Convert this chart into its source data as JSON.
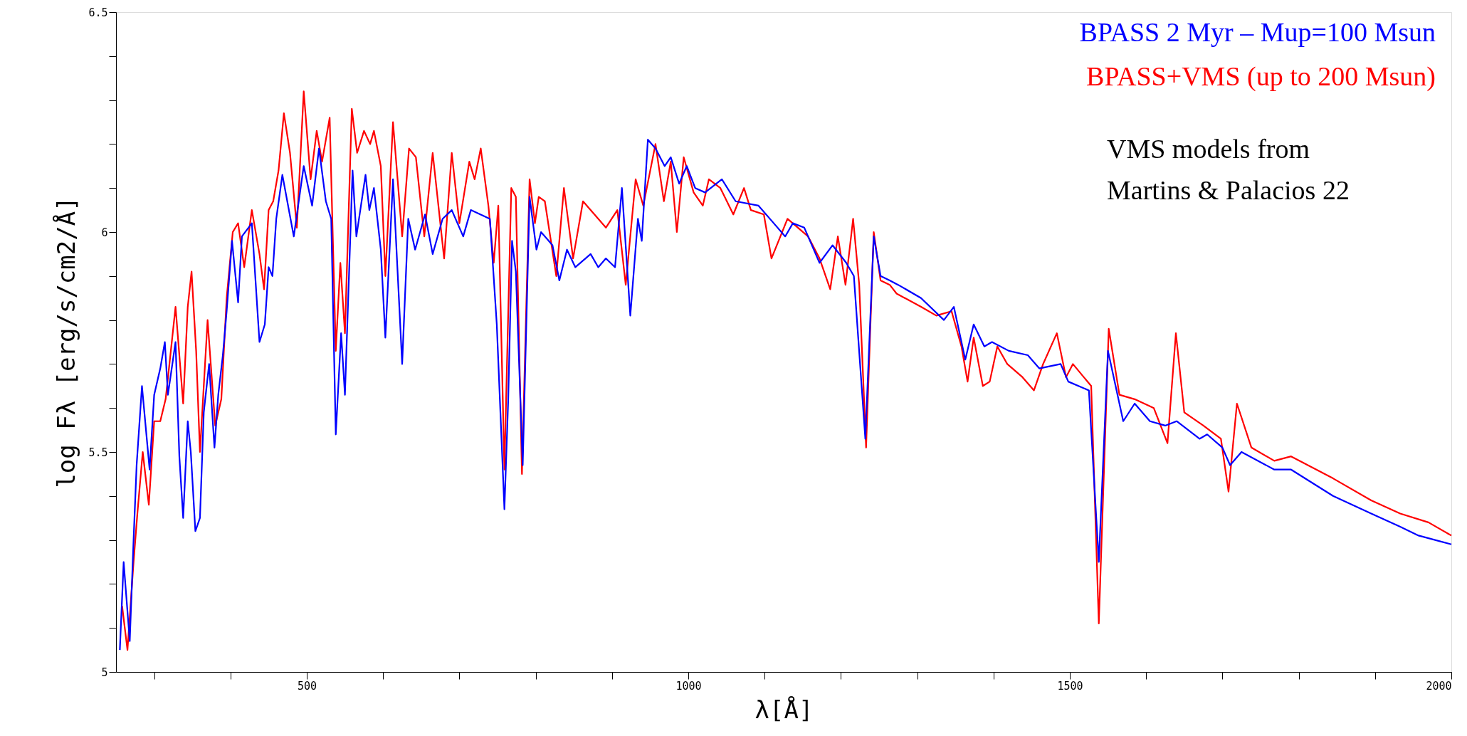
{
  "chart_data": {
    "type": "line",
    "xlabel": "λ[Å]",
    "ylabel": "log Fλ [erg/s/cm2/Å]",
    "xlim": [
      250,
      2000
    ],
    "ylim": [
      5,
      6.5
    ],
    "xticks": [
      {
        "value": 300,
        "label": null
      },
      {
        "value": 400,
        "label": null
      },
      500,
      {
        "value": 600,
        "label": null
      },
      {
        "value": 700,
        "label": null
      },
      {
        "value": 800,
        "label": null
      },
      {
        "value": 900,
        "label": null
      },
      1000,
      {
        "value": 1100,
        "label": null
      },
      {
        "value": 1200,
        "label": null
      },
      {
        "value": 1300,
        "label": null
      },
      {
        "value": 1400,
        "label": null
      },
      1500,
      {
        "value": 1600,
        "label": null
      },
      {
        "value": 1700,
        "label": null
      },
      {
        "value": 1800,
        "label": null
      },
      {
        "value": 1900,
        "label": null
      },
      2000
    ],
    "yticks": [
      5,
      {
        "value": 5.1,
        "label": null
      },
      {
        "value": 5.2,
        "label": null
      },
      {
        "value": 5.3,
        "label": null
      },
      {
        "value": 5.4,
        "label": null
      },
      5.5,
      {
        "value": 5.6,
        "label": null
      },
      {
        "value": 5.7,
        "label": null
      },
      {
        "value": 5.8,
        "label": null
      },
      {
        "value": 5.9,
        "label": null
      },
      6,
      {
        "value": 6.1,
        "label": null
      },
      {
        "value": 6.2,
        "label": null
      },
      {
        "value": 6.3,
        "label": null
      },
      {
        "value": 6.4,
        "label": null
      },
      6.5
    ],
    "grid": false,
    "legend": "top right",
    "marker": "none",
    "line_style": "solid",
    "annotations": [
      "VMS models from\nMartins & Palacios 22"
    ],
    "series": [
      {
        "name": "BPASS 2 Myr – Mup=100 Msun",
        "color": "#0000ff",
        "x": [
          255,
          260,
          268,
          273,
          277,
          284,
          294,
          300,
          308,
          314,
          318,
          328,
          333,
          338,
          344,
          348,
          354,
          360,
          365,
          372,
          379,
          384,
          390,
          395,
          402,
          410,
          415,
          428,
          438,
          445,
          450,
          455,
          460,
          468,
          483,
          496,
          507,
          516,
          525,
          532,
          538,
          545,
          550,
          560,
          565,
          577,
          582,
          588,
          597,
          603,
          613,
          625,
          633,
          642,
          655,
          665,
          678,
          690,
          705,
          715,
          740,
          749,
          759,
          764,
          769,
          774,
          783,
          792,
          801,
          807,
          822,
          831,
          841,
          852,
          872,
          882,
          892,
          904,
          913,
          924,
          934,
          939,
          947,
          957,
          969,
          977,
          988,
          998,
          1009,
          1022,
          1044,
          1062,
          1092,
          1112,
          1127,
          1137,
          1152,
          1172,
          1189,
          1207,
          1217,
          1232,
          1243,
          1252,
          1264,
          1275,
          1305,
          1335,
          1348,
          1363,
          1374,
          1388,
          1398,
          1420,
          1445,
          1460,
          1488,
          1498,
          1525,
          1538,
          1550,
          1570,
          1585,
          1605,
          1625,
          1640,
          1670,
          1680,
          1700,
          1710,
          1725,
          1768,
          1790,
          1845,
          1895,
          1933,
          1957,
          2000
        ],
        "values": [
          5.05,
          5.25,
          5.07,
          5.3,
          5.47,
          5.65,
          5.46,
          5.63,
          5.69,
          5.75,
          5.63,
          5.75,
          5.49,
          5.35,
          5.57,
          5.5,
          5.32,
          5.35,
          5.59,
          5.7,
          5.51,
          5.63,
          5.72,
          5.82,
          5.98,
          5.84,
          5.99,
          6.02,
          5.75,
          5.79,
          5.92,
          5.9,
          6.03,
          6.13,
          5.99,
          6.15,
          6.06,
          6.19,
          6.07,
          6.03,
          5.54,
          5.77,
          5.63,
          6.14,
          5.99,
          6.13,
          6.05,
          6.1,
          5.96,
          5.76,
          6.12,
          5.7,
          6.03,
          5.96,
          6.04,
          5.95,
          6.03,
          6.05,
          5.99,
          6.05,
          6.03,
          5.79,
          5.37,
          5.62,
          5.98,
          5.91,
          5.47,
          6.08,
          5.96,
          6.0,
          5.97,
          5.89,
          5.96,
          5.92,
          5.95,
          5.92,
          5.94,
          5.92,
          6.1,
          5.81,
          6.03,
          5.98,
          6.21,
          6.19,
          6.15,
          6.17,
          6.11,
          6.15,
          6.1,
          6.09,
          6.12,
          6.07,
          6.06,
          6.02,
          5.99,
          6.02,
          6.01,
          5.93,
          5.97,
          5.93,
          5.9,
          5.53,
          5.99,
          5.9,
          5.89,
          5.88,
          5.85,
          5.8,
          5.83,
          5.71,
          5.79,
          5.74,
          5.75,
          5.73,
          5.72,
          5.69,
          5.7,
          5.66,
          5.64,
          5.25,
          5.73,
          5.57,
          5.61,
          5.57,
          5.56,
          5.57,
          5.53,
          5.54,
          5.51,
          5.47,
          5.5,
          5.46,
          5.46,
          5.4,
          5.36,
          5.33,
          5.31,
          5.29
        ]
      },
      {
        "name": "BPASS+VMS (up to 200 Msun)",
        "color": "#ff0000",
        "x": [
          258,
          265,
          273,
          278,
          285,
          293,
          300,
          308,
          315,
          320,
          328,
          338,
          344,
          349,
          355,
          360,
          370,
          380,
          388,
          395,
          403,
          410,
          418,
          428,
          438,
          444,
          450,
          456,
          463,
          470,
          478,
          487,
          496,
          505,
          513,
          520,
          530,
          538,
          544,
          550,
          559,
          566,
          575,
          583,
          588,
          597,
          603,
          613,
          625,
          634,
          643,
          654,
          665,
          680,
          690,
          700,
          713,
          720,
          728,
          738,
          745,
          751,
          759,
          768,
          774,
          782,
          792,
          799,
          804,
          812,
          827,
          837,
          849,
          862,
          877,
          892,
          907,
          918,
          931,
          941,
          957,
          968,
          977,
          985,
          994,
          1007,
          1019,
          1027,
          1042,
          1059,
          1073,
          1082,
          1099,
          1109,
          1130,
          1157,
          1172,
          1186,
          1196,
          1206,
          1216,
          1224,
          1233,
          1243,
          1252,
          1264,
          1273,
          1305,
          1325,
          1345,
          1358,
          1366,
          1374,
          1386,
          1395,
          1405,
          1418,
          1438,
          1453,
          1465,
          1483,
          1495,
          1504,
          1528,
          1538,
          1551,
          1565,
          1585,
          1610,
          1628,
          1639,
          1650,
          1675,
          1698,
          1708,
          1719,
          1738,
          1768,
          1790,
          1845,
          1895,
          1933,
          1970,
          2000
        ],
        "values": [
          5.15,
          5.05,
          5.25,
          5.36,
          5.5,
          5.38,
          5.57,
          5.57,
          5.62,
          5.7,
          5.83,
          5.61,
          5.83,
          5.91,
          5.73,
          5.5,
          5.8,
          5.56,
          5.62,
          5.85,
          6.0,
          6.02,
          5.92,
          6.05,
          5.95,
          5.87,
          6.05,
          6.07,
          6.14,
          6.27,
          6.18,
          6.01,
          6.32,
          6.12,
          6.23,
          6.16,
          6.26,
          5.73,
          5.93,
          5.77,
          6.28,
          6.18,
          6.23,
          6.2,
          6.23,
          6.15,
          5.9,
          6.25,
          5.99,
          6.19,
          6.17,
          5.99,
          6.18,
          5.94,
          6.18,
          6.02,
          6.16,
          6.12,
          6.19,
          6.06,
          5.93,
          6.06,
          5.46,
          6.1,
          6.08,
          5.45,
          6.12,
          6.02,
          6.08,
          6.07,
          5.9,
          6.1,
          5.94,
          6.07,
          6.04,
          6.01,
          6.05,
          5.88,
          6.12,
          6.06,
          6.2,
          6.07,
          6.16,
          6.0,
          6.17,
          6.09,
          6.06,
          6.12,
          6.1,
          6.04,
          6.1,
          6.05,
          6.04,
          5.94,
          6.03,
          5.99,
          5.94,
          5.87,
          5.99,
          5.88,
          6.03,
          5.88,
          5.51,
          6.0,
          5.89,
          5.88,
          5.86,
          5.83,
          5.81,
          5.82,
          5.74,
          5.66,
          5.76,
          5.65,
          5.66,
          5.74,
          5.7,
          5.67,
          5.64,
          5.7,
          5.77,
          5.67,
          5.7,
          5.65,
          5.11,
          5.78,
          5.63,
          5.62,
          5.6,
          5.52,
          5.77,
          5.59,
          5.56,
          5.53,
          5.41,
          5.61,
          5.51,
          5.48,
          5.49,
          5.44,
          5.39,
          5.36,
          5.34,
          5.31
        ]
      }
    ]
  }
}
